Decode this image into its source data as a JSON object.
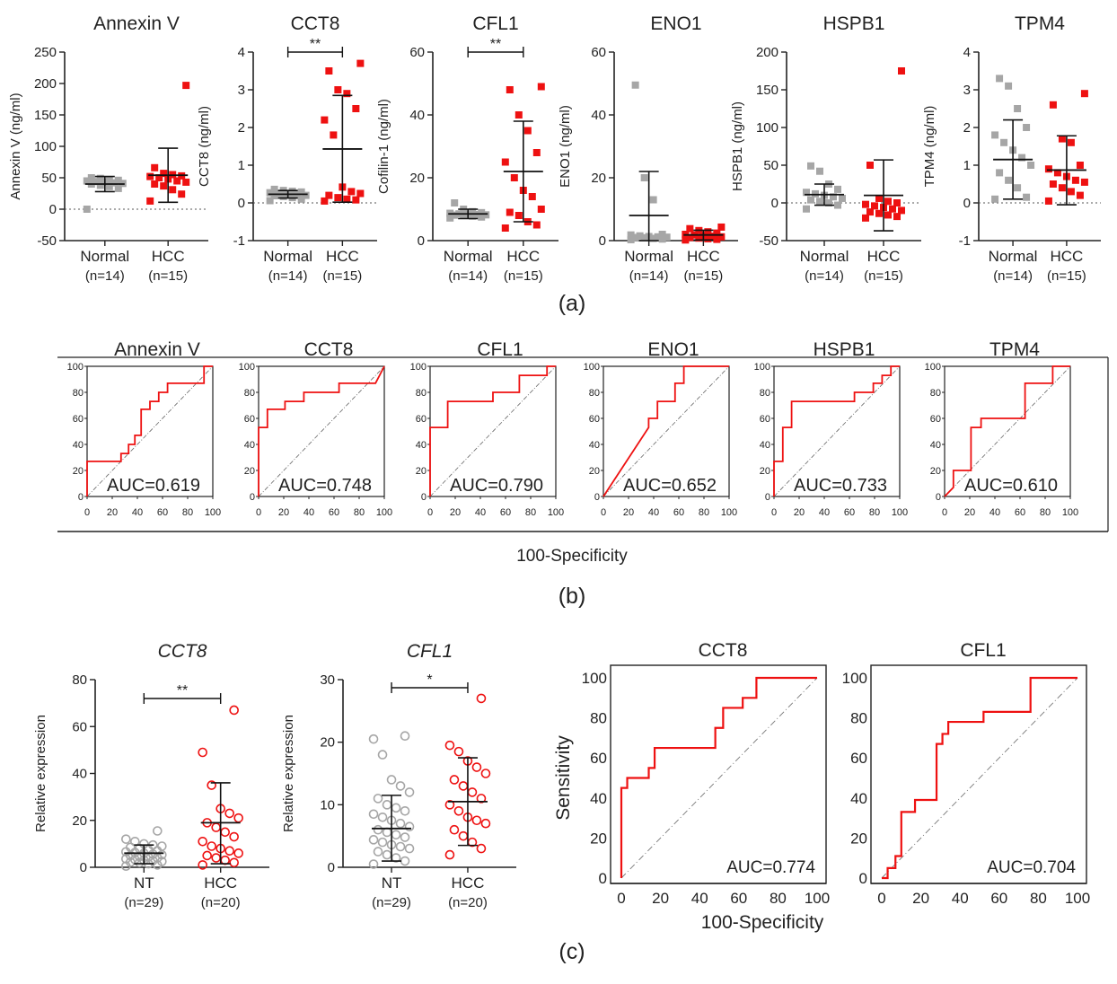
{
  "colors": {
    "normal": "#a6a6a6",
    "hcc": "#ee1111",
    "axis": "#222222",
    "roc": "#ee1111"
  },
  "panel_labels": [
    "(a)",
    "(b)",
    "(c)"
  ],
  "roc_b_xlabel": "100-Specificity",
  "chart_data": [
    {
      "panel": "a",
      "type": "scatter",
      "title": "Annexin V",
      "ylabel": "Annexin V (ng/ml)",
      "ylim": [
        -50,
        250
      ],
      "yticks": [
        -50,
        0,
        50,
        100,
        150,
        200,
        250
      ],
      "groups": [
        {
          "name": "Normal",
          "n": "(n=14)",
          "values": [
            0,
            33,
            36,
            38,
            40,
            41,
            42,
            43,
            44,
            45,
            46,
            47,
            49,
            50
          ],
          "mean": 40,
          "sd_low": 28,
          "sd_high": 52
        },
        {
          "name": "HCC",
          "n": "(n=15)",
          "values": [
            13,
            24,
            31,
            37,
            40,
            43,
            45,
            48,
            50,
            52,
            53,
            55,
            57,
            66,
            197
          ],
          "mean": 54,
          "sd_low": 11,
          "sd_high": 97
        }
      ],
      "sig": ""
    },
    {
      "panel": "a",
      "type": "scatter",
      "title": "CCT8",
      "ylabel": "CCT8 (ng/ml)",
      "ylim": [
        -1,
        4
      ],
      "yticks": [
        -1,
        0,
        1,
        2,
        3,
        4
      ],
      "groups": [
        {
          "name": "Normal",
          "n": "(n=14)",
          "values": [
            0.06,
            0.1,
            0.14,
            0.17,
            0.19,
            0.2,
            0.22,
            0.23,
            0.25,
            0.27,
            0.29,
            0.31,
            0.33,
            0.36
          ],
          "mean": 0.23,
          "sd_low": 0.13,
          "sd_high": 0.33
        },
        {
          "name": "HCC",
          "n": "(n=15)",
          "values": [
            0.05,
            0.08,
            0.1,
            0.14,
            0.2,
            0.25,
            0.3,
            0.42,
            1.8,
            2.2,
            2.5,
            2.9,
            3.0,
            3.5,
            3.7
          ],
          "mean": 1.43,
          "sd_low": 0.02,
          "sd_high": 2.85
        }
      ],
      "sig": "**"
    },
    {
      "panel": "a",
      "type": "scatter",
      "title": "CFL1",
      "ylabel": "Cofilin-1 (ng/ml)",
      "ylim": [
        0,
        60
      ],
      "yticks": [
        0,
        20,
        40,
        60
      ],
      "groups": [
        {
          "name": "Normal",
          "n": "(n=14)",
          "values": [
            7.2,
            7.5,
            7.8,
            8,
            8.1,
            8.2,
            8.3,
            8.4,
            8.5,
            8.7,
            8.9,
            9.2,
            10,
            12
          ],
          "mean": 8.5,
          "sd_low": 7,
          "sd_high": 10
        },
        {
          "name": "HCC",
          "n": "(n=15)",
          "values": [
            4,
            5,
            6,
            8,
            9,
            10,
            14,
            16,
            20,
            25,
            28,
            35,
            40,
            48,
            49
          ],
          "mean": 22,
          "sd_low": 6,
          "sd_high": 38
        }
      ],
      "sig": "**"
    },
    {
      "panel": "a",
      "type": "scatter",
      "title": "ENO1",
      "ylabel": "ENO1 (ng/ml)",
      "ylim": [
        0,
        60
      ],
      "yticks": [
        0,
        20,
        40,
        60
      ],
      "groups": [
        {
          "name": "Normal",
          "n": "(n=14)",
          "values": [
            0.3,
            0.5,
            0.7,
            0.9,
            1,
            1.1,
            1.2,
            1.3,
            1.5,
            1.8,
            2,
            13,
            20,
            49.5
          ],
          "mean": 8,
          "sd_low": 0,
          "sd_high": 22
        },
        {
          "name": "HCC",
          "n": "(n=15)",
          "values": [
            0.2,
            0.4,
            0.6,
            0.8,
            1,
            1.2,
            1.4,
            1.6,
            1.8,
            2,
            2.4,
            2.8,
            3.2,
            3.8,
            4.3
          ],
          "mean": 1.8,
          "sd_low": 0.2,
          "sd_high": 3.3
        }
      ],
      "sig": ""
    },
    {
      "panel": "a",
      "type": "scatter",
      "title": "HSPB1",
      "ylabel": "HSPB1 (ng/ml)",
      "ylim": [
        -50,
        200
      ],
      "yticks": [
        -50,
        0,
        50,
        100,
        150,
        200
      ],
      "groups": [
        {
          "name": "Normal",
          "n": "(n=14)",
          "values": [
            -8,
            -3,
            0,
            2,
            4,
            6,
            8,
            10,
            12,
            14,
            18,
            25,
            42,
            49
          ],
          "mean": 11,
          "sd_low": -3,
          "sd_high": 25
        },
        {
          "name": "HCC",
          "n": "(n=15)",
          "values": [
            -20,
            -18,
            -16,
            -14,
            -12,
            -10,
            -8,
            -6,
            -4,
            -2,
            0,
            2,
            6,
            50,
            175
          ],
          "mean": 10,
          "sd_low": -37,
          "sd_high": 57
        }
      ],
      "sig": ""
    },
    {
      "panel": "a",
      "type": "scatter",
      "title": "TPM4",
      "ylabel": "TPM4 (ng/ml)",
      "ylim": [
        -1,
        4
      ],
      "yticks": [
        -1,
        0,
        1,
        2,
        3,
        4
      ],
      "groups": [
        {
          "name": "Normal",
          "n": "(n=14)",
          "values": [
            0.1,
            0.15,
            0.4,
            0.6,
            0.8,
            1.0,
            1.2,
            1.4,
            1.6,
            1.8,
            2.0,
            2.5,
            3.1,
            3.3
          ],
          "mean": 1.15,
          "sd_low": 0.1,
          "sd_high": 2.2
        },
        {
          "name": "HCC",
          "n": "(n=15)",
          "values": [
            0.05,
            0.2,
            0.3,
            0.4,
            0.5,
            0.55,
            0.6,
            0.7,
            0.8,
            0.9,
            1.0,
            1.6,
            1.7,
            2.6,
            2.9
          ],
          "mean": 0.87,
          "sd_low": -0.05,
          "sd_high": 1.78
        }
      ],
      "sig": ""
    },
    {
      "panel": "b",
      "type": "line",
      "title": "Annexin V",
      "auc": "AUC=0.619",
      "xlim": [
        0,
        100
      ],
      "ylim": [
        0,
        100
      ],
      "x": [
        0,
        0,
        7,
        7,
        27,
        27,
        33,
        33,
        38,
        38,
        43,
        43,
        50,
        50,
        57,
        57,
        64,
        64,
        86,
        86,
        93,
        93,
        100,
        100
      ],
      "y": [
        0,
        27,
        27,
        27,
        27,
        33,
        33,
        40,
        40,
        47,
        47,
        67,
        67,
        73,
        73,
        80,
        80,
        87,
        87,
        87,
        87,
        100,
        100,
        100
      ]
    },
    {
      "panel": "b",
      "type": "line",
      "title": "CCT8",
      "auc": "AUC=0.748",
      "xlim": [
        0,
        100
      ],
      "ylim": [
        0,
        100
      ],
      "x": [
        0,
        0,
        7,
        7,
        21,
        21,
        36,
        36,
        43,
        43,
        64,
        64,
        93,
        93,
        100
      ],
      "y": [
        0,
        53,
        53,
        67,
        67,
        73,
        73,
        80,
        80,
        80,
        80,
        87,
        87,
        87,
        100
      ]
    },
    {
      "panel": "b",
      "type": "line",
      "title": "CFL1",
      "auc": "AUC=0.790",
      "xlim": [
        0,
        100
      ],
      "ylim": [
        0,
        100
      ],
      "x": [
        0,
        0,
        14,
        14,
        50,
        50,
        71,
        71,
        93,
        93,
        100
      ],
      "y": [
        0,
        53,
        53,
        73,
        73,
        80,
        80,
        93,
        93,
        100,
        100
      ]
    },
    {
      "panel": "b",
      "type": "line",
      "title": "ENO1",
      "auc": "AUC=0.652",
      "xlim": [
        0,
        100
      ],
      "ylim": [
        0,
        100
      ],
      "x": [
        0,
        36,
        36,
        43,
        43,
        57,
        57,
        64,
        64,
        100
      ],
      "y": [
        0,
        53,
        60,
        60,
        73,
        73,
        87,
        87,
        100,
        100
      ]
    },
    {
      "panel": "b",
      "type": "line",
      "title": "HSPB1",
      "auc": "AUC=0.733",
      "xlim": [
        0,
        100
      ],
      "ylim": [
        0,
        100
      ],
      "x": [
        0,
        0,
        7,
        7,
        14,
        14,
        64,
        64,
        79,
        79,
        86,
        86,
        93,
        93,
        100
      ],
      "y": [
        0,
        27,
        27,
        53,
        53,
        73,
        73,
        80,
        80,
        87,
        87,
        93,
        93,
        100,
        100
      ]
    },
    {
      "panel": "b",
      "type": "line",
      "title": "TPM4",
      "auc": "AUC=0.610",
      "xlim": [
        0,
        100
      ],
      "ylim": [
        0,
        100
      ],
      "x": [
        0,
        7,
        7,
        21,
        21,
        29,
        29,
        64,
        64,
        86,
        86,
        100
      ],
      "y": [
        0,
        7,
        20,
        20,
        53,
        53,
        60,
        60,
        87,
        87,
        100,
        100
      ]
    },
    {
      "panel": "c",
      "type": "scatter",
      "title": "CCT8",
      "ylabel": "Relative expression",
      "ylim": [
        0,
        80
      ],
      "yticks": [
        0,
        20,
        40,
        60,
        80
      ],
      "groups": [
        {
          "name": "NT",
          "n": "(n=29)",
          "values": [
            0.5,
            1,
            1.5,
            2,
            2.2,
            2.5,
            2.8,
            3,
            3.3,
            3.6,
            4,
            4.3,
            4.6,
            5,
            5.3,
            5.6,
            6,
            6.3,
            6.6,
            7,
            7.5,
            8,
            8.5,
            9,
            9.5,
            10,
            11,
            12,
            15.5
          ],
          "mean": 6,
          "sd_low": 1.5,
          "sd_high": 9.5
        },
        {
          "name": "HCC",
          "n": "(n=20)",
          "values": [
            1,
            2,
            3,
            4,
            5,
            6,
            7,
            8,
            9,
            11,
            13,
            15,
            17,
            19,
            21,
            23,
            25,
            35,
            49,
            67
          ],
          "mean": 19,
          "sd_low": 1.5,
          "sd_high": 36
        }
      ],
      "sig": "**"
    },
    {
      "panel": "c",
      "type": "scatter",
      "title": "CFL1",
      "ylabel": "Relative expression",
      "ylim": [
        0,
        30
      ],
      "yticks": [
        0,
        10,
        20,
        30
      ],
      "groups": [
        {
          "name": "NT",
          "n": "(n=29)",
          "values": [
            0.5,
            1,
            1.5,
            2,
            2.5,
            3,
            3.3,
            3.6,
            4,
            4.4,
            4.8,
            5.2,
            5.6,
            6,
            6.5,
            7,
            7.5,
            8,
            8.5,
            9,
            9.5,
            10,
            11,
            12,
            13,
            14,
            18,
            20.5,
            21
          ],
          "mean": 6.2,
          "sd_low": 1,
          "sd_high": 11.5
        },
        {
          "name": "HCC",
          "n": "(n=20)",
          "values": [
            2,
            3,
            4,
            5,
            6,
            7,
            7.5,
            8,
            9,
            10,
            11,
            12,
            13,
            14,
            15,
            16,
            17,
            18.5,
            19.5,
            27
          ],
          "mean": 10.5,
          "sd_low": 3.5,
          "sd_high": 17.5
        }
      ],
      "sig": "*"
    },
    {
      "panel": "c",
      "type": "line",
      "title": "CCT8",
      "auc": "AUC=0.774",
      "xlabel": "100-Specificity",
      "ylabel": "Sensitivity",
      "xlim": [
        0,
        100
      ],
      "ylim": [
        0,
        100
      ],
      "ticks": [
        0,
        20,
        40,
        60,
        80,
        100
      ],
      "x": [
        0,
        0,
        3,
        3,
        14,
        14,
        17,
        17,
        48,
        48,
        52,
        52,
        62,
        62,
        69,
        69,
        100
      ],
      "y": [
        0,
        45,
        45,
        50,
        50,
        55,
        55,
        65,
        65,
        75,
        75,
        85,
        85,
        90,
        90,
        100,
        100
      ]
    },
    {
      "panel": "c",
      "type": "line",
      "title": "CFL1",
      "auc": "AUC=0.704",
      "xlabel": "",
      "ylabel": "",
      "xlim": [
        0,
        100
      ],
      "ylim": [
        0,
        100
      ],
      "ticks": [
        0,
        20,
        40,
        60,
        80,
        100
      ],
      "x": [
        0,
        3,
        3,
        7,
        7,
        10,
        10,
        17,
        17,
        28,
        28,
        31,
        31,
        34,
        34,
        38,
        38,
        52,
        52,
        76,
        76,
        100
      ],
      "y": [
        0,
        0,
        5,
        5,
        11,
        11,
        33,
        33,
        39,
        39,
        67,
        67,
        72,
        72,
        78,
        78,
        78,
        78,
        83,
        83,
        100,
        100
      ]
    }
  ]
}
